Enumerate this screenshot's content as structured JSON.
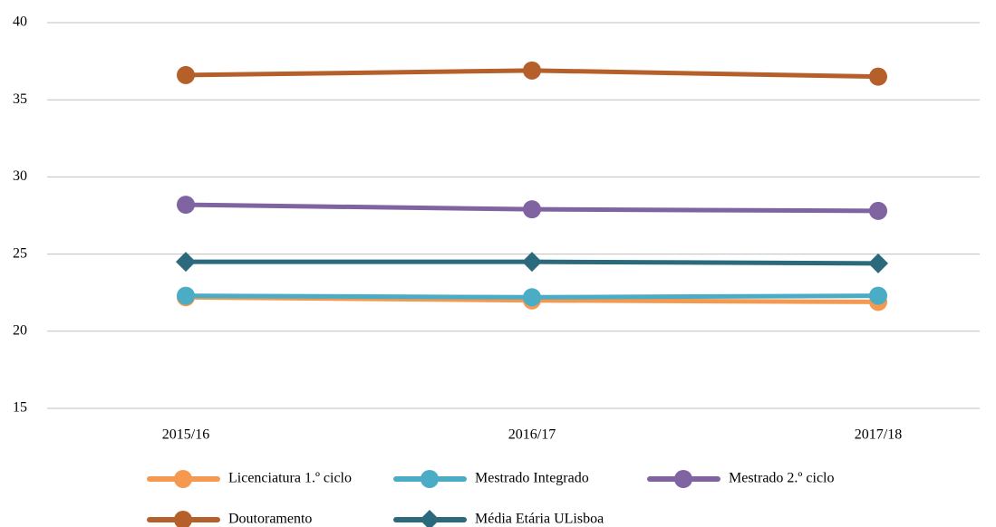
{
  "chart_data": {
    "type": "line",
    "categories": [
      "2015/16",
      "2016/17",
      "2017/18"
    ],
    "series": [
      {
        "name": "Licenciatura 1.º ciclo",
        "color": "#f4994f",
        "marker": "circle",
        "values": [
          22.2,
          22.0,
          21.9
        ]
      },
      {
        "name": "Mestrado Integrado",
        "color": "#4bacc6",
        "marker": "circle",
        "values": [
          22.3,
          22.2,
          22.3
        ]
      },
      {
        "name": "Mestrado 2.º ciclo",
        "color": "#8064a2",
        "marker": "circle",
        "values": [
          28.2,
          27.9,
          27.8
        ]
      },
      {
        "name": "Doutoramento",
        "color": "#b5602b",
        "marker": "circle",
        "values": [
          36.6,
          36.9,
          36.5
        ]
      },
      {
        "name": "Média Etária ULisboa",
        "color": "#2b6a7c",
        "marker": "diamond",
        "values": [
          24.5,
          24.5,
          24.4
        ]
      }
    ],
    "ylim": [
      15,
      40
    ],
    "yticks": [
      15,
      20,
      25,
      30,
      35,
      40
    ],
    "grid": true
  }
}
